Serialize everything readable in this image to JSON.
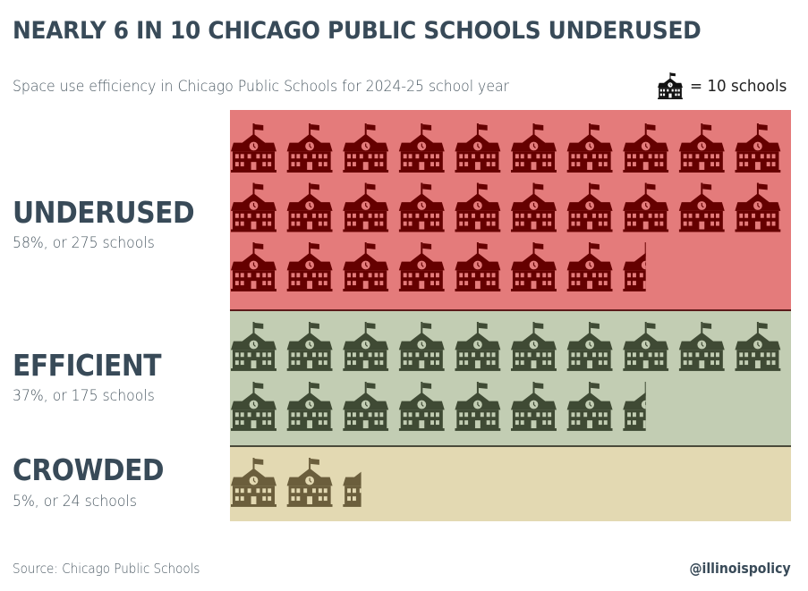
{
  "title": "NEARLY 6 IN 10 CHICAGO PUBLIC SCHOOLS UNDERUSED",
  "subtitle": "Space use efficiency in Chicago Public Schools for 2024-25 school year",
  "legend": {
    "icon": "school-icon",
    "text": "= 10 schools",
    "units_per_icon": 10
  },
  "source": "Source: Chicago Public Schools",
  "handle": "@illinoispolicy",
  "chart_data": {
    "type": "pictogram",
    "title": "NEARLY 6 IN 10 CHICAGO PUBLIC SCHOOLS UNDERUSED",
    "subtitle": "Space use efficiency in Chicago Public Schools for 2024-25 school year",
    "units_per_icon": 10,
    "icons_per_row": 10,
    "categories": [
      "UNDERUSED",
      "EFFICIENT",
      "CROWDED"
    ],
    "series": [
      {
        "name": "UNDERUSED",
        "label": "UNDERUSED",
        "detail": "58%, or 275 schools",
        "percent": 58,
        "value": 275,
        "band_color": "#e47b7b",
        "icon_color": "#650000",
        "divider_color": "#5c1a1a"
      },
      {
        "name": "EFFICIENT",
        "label": "EFFICIENT",
        "detail": "37%, or 175 schools",
        "percent": 37,
        "value": 175,
        "band_color": "#c2cdb3",
        "icon_color": "#3f4a34",
        "divider_color": "#4a4a3a"
      },
      {
        "name": "CROWDED",
        "label": "CROWDED",
        "detail": "5%, or 24 schools",
        "percent": 5,
        "value": 24,
        "band_color": "#e3d9b2",
        "icon_color": "#6b5e3c"
      }
    ]
  }
}
